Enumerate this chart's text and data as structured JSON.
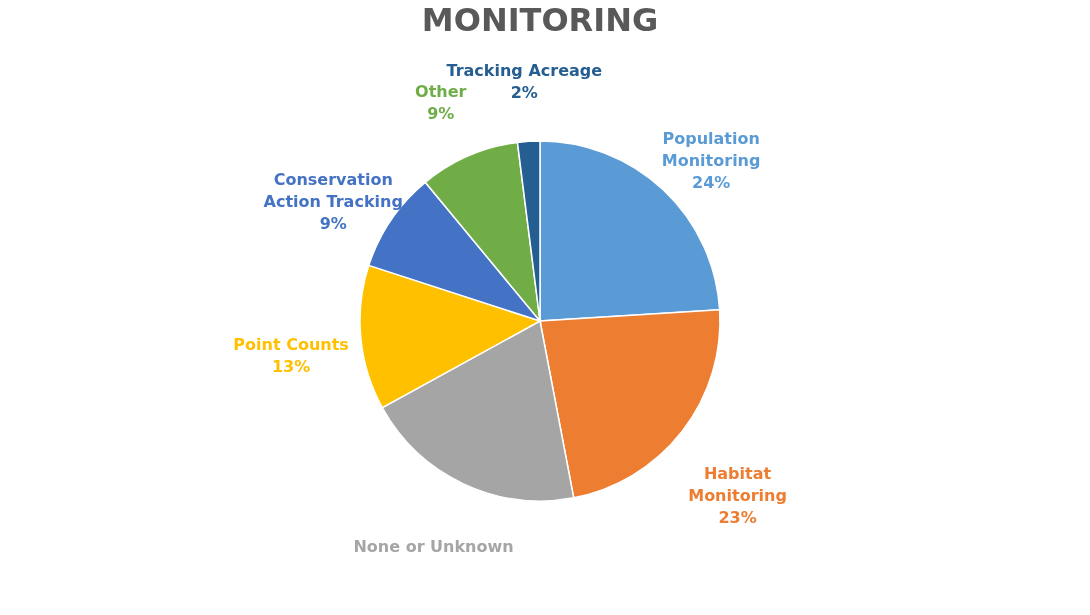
{
  "chart_data": {
    "type": "pie",
    "title": "MONITORING",
    "categories": [
      "Population Monitoring",
      "Habitat Monitoring",
      "None or Unknown",
      "Point Counts",
      "Conservation Action Tracking",
      "Other",
      "Tracking Acreage"
    ],
    "values": [
      24,
      23,
      20,
      13,
      9,
      9,
      2
    ],
    "value_labels": [
      "24%",
      "23%",
      null,
      "13%",
      "9%",
      "9%",
      "2%"
    ],
    "colors": [
      "#5b9bd5",
      "#ed7d31",
      "#a5a5a5",
      "#ffc000",
      "#4472c4",
      "#70ad47",
      "#255e91"
    ],
    "legend": false
  }
}
